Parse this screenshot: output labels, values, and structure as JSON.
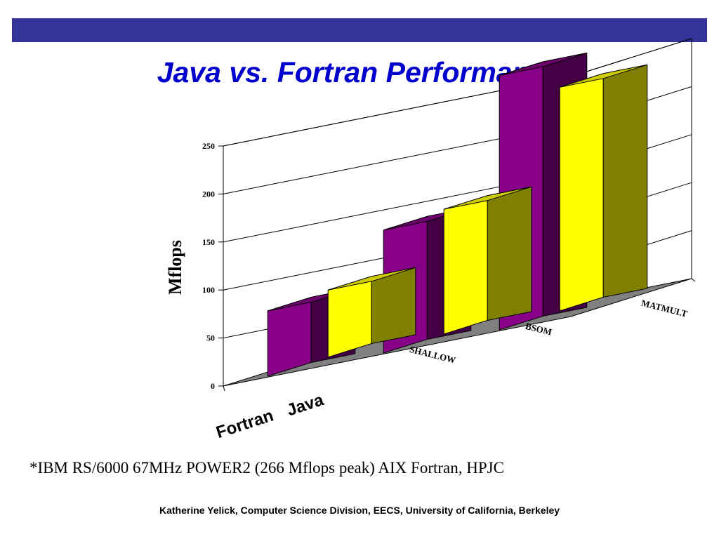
{
  "slide": {
    "title": "Java vs. Fortran Performance",
    "footnote": "*IBM RS/6000 67MHz POWER2 (266 Mflops peak) AIX Fortran, HPJC",
    "footer": "Katherine Yelick, Computer Science Division, EECS, University of California, Berkeley",
    "bar_color": "#333399",
    "title_color": "#0000cc"
  },
  "chart_data": {
    "type": "bar",
    "subtype": "3d-clustered-depth",
    "ylabel": "Mflops",
    "ylim": [
      0,
      250
    ],
    "yticks": [
      0,
      50,
      100,
      150,
      200,
      250
    ],
    "grid": true,
    "categories": [
      "SHALLOW",
      "BSOM",
      "MATMULT"
    ],
    "series": [
      {
        "name": "Fortran",
        "values": [
          68,
          128,
          265
        ],
        "color": "#880088"
      },
      {
        "name": "Java",
        "values": [
          70,
          130,
          233
        ],
        "color": "#ffff00"
      }
    ],
    "floor_color": "#808080"
  }
}
